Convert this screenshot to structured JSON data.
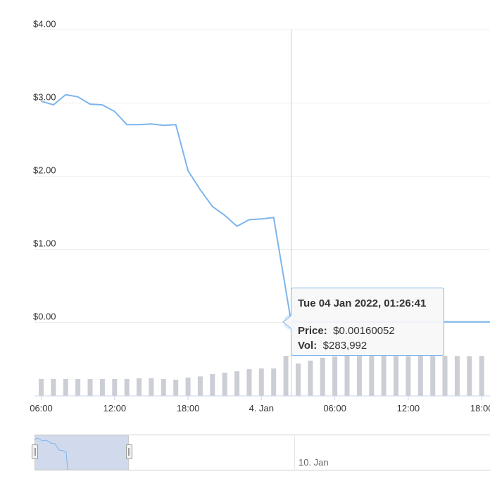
{
  "chart_data": {
    "type": "line",
    "y_axis": {
      "ticks": [
        {
          "value": 4,
          "label": "$4.00"
        },
        {
          "value": 3,
          "label": "$3.00"
        },
        {
          "value": 2,
          "label": "$2.00"
        },
        {
          "value": 1,
          "label": "$1.00"
        },
        {
          "value": 0,
          "label": "$0.00"
        }
      ],
      "ylim": [
        0,
        4
      ]
    },
    "x_axis": {
      "ticks": [
        {
          "value": 6,
          "label": "06:00"
        },
        {
          "value": 12,
          "label": "12:00"
        },
        {
          "value": 18,
          "label": "18:00"
        },
        {
          "value": 24,
          "label": "4. Jan"
        },
        {
          "value": 30,
          "label": "06:00"
        },
        {
          "value": 36,
          "label": "12:00"
        },
        {
          "value": 42,
          "label": "18:00"
        }
      ],
      "note": "hours from 00:00 on 3 Jan 2022"
    },
    "grid": true,
    "series": [
      {
        "type": "line",
        "color": "#7cb5ec",
        "x": [
          6.0,
          7.0,
          8.0,
          9.0,
          10.0,
          11.0,
          12.0,
          13.0,
          14.0,
          15.0,
          16.0,
          17.0,
          18.0,
          19.0,
          20.0,
          21.0,
          22.0,
          23.0,
          24.0,
          25.0,
          26.43,
          27.0,
          28.0,
          29.0,
          30.0,
          31.0,
          32.0,
          33.0,
          34.0,
          35.0,
          36.0,
          37.0,
          38.0,
          39.0,
          40.0,
          41.0,
          42.0,
          43.0
        ],
        "y": [
          3.02,
          2.97,
          3.11,
          3.08,
          2.98,
          2.97,
          2.88,
          2.7,
          2.7,
          2.71,
          2.69,
          2.7,
          2.07,
          1.81,
          1.58,
          1.46,
          1.31,
          1.4,
          1.41,
          1.43,
          0.0016,
          0.0016,
          0.0016,
          0.0016,
          0.0016,
          0.0016,
          0.0016,
          0.0016,
          0.0016,
          0.0016,
          0.0016,
          0.0016,
          0.0016,
          0.0016,
          0.0016,
          0.0016,
          0.0016,
          0.0016
        ]
      },
      {
        "type": "column",
        "color": "#ccced5",
        "x": [
          6.0,
          7.0,
          8.0,
          9.0,
          10.0,
          11.0,
          12.0,
          13.0,
          14.0,
          15.0,
          16.0,
          17.0,
          18.0,
          19.0,
          20.0,
          21.0,
          22.0,
          23.0,
          24.0,
          25.0,
          26.0,
          27.0,
          28.0,
          29.0,
          30.0,
          31.0,
          32.0,
          33.0,
          34.0,
          35.0,
          36.0,
          37.0,
          38.0,
          39.0,
          40.0,
          41.0,
          42.0,
          43.0
        ],
        "values": [
          120000,
          120000,
          120000,
          120000,
          120000,
          120000,
          120000,
          120000,
          125000,
          125000,
          120000,
          115000,
          130000,
          138000,
          155000,
          165000,
          175000,
          190000,
          195000,
          195000,
          283992,
          230000,
          250000,
          270000,
          280000,
          285000,
          283000,
          284000,
          284000,
          283000,
          282000,
          284000,
          283000,
          284000,
          283000,
          282000,
          283000,
          284000
        ],
        "ylim": [
          0,
          600000
        ]
      }
    ],
    "crosshair_x": 26.43,
    "tooltip": {
      "title": "Tue 04 Jan 2022, 01:26:41",
      "price_label": "Price:",
      "price_value": "$0.00160052",
      "vol_label": "Vol:",
      "vol_value": "$283,992"
    },
    "navigator": {
      "label": "10. Jan",
      "selected_range_fraction": [
        0,
        0.2
      ]
    }
  }
}
